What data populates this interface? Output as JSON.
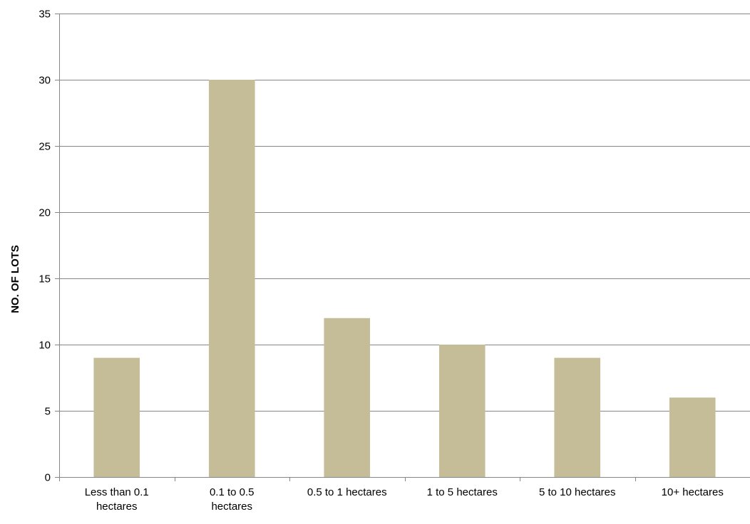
{
  "chart_data": {
    "type": "bar",
    "title": "",
    "xlabel": "",
    "ylabel": "NO. OF LOTS",
    "categories": [
      "Less than 0.1 hectares",
      "0.1 to 0.5 hectares",
      "0.5 to 1 hectares",
      "1 to 5 hectares",
      "5 to 10 hectares",
      "10+ hectares"
    ],
    "category_label_lines": [
      [
        "Less than 0.1",
        "hectares"
      ],
      [
        "0.1 to 0.5",
        "hectares"
      ],
      [
        "0.5 to 1 hectares"
      ],
      [
        "1 to 5 hectares"
      ],
      [
        "5 to 10 hectares"
      ],
      [
        "10+ hectares"
      ]
    ],
    "values": [
      9,
      30,
      12,
      10,
      9,
      6
    ],
    "ylim": [
      0,
      35
    ],
    "yticks": [
      0,
      5,
      10,
      15,
      20,
      25,
      30,
      35
    ],
    "grid": true,
    "legend": "none",
    "colors": {
      "bar": "#c4bd97",
      "grid": "#868686",
      "axis": "#868686"
    }
  }
}
